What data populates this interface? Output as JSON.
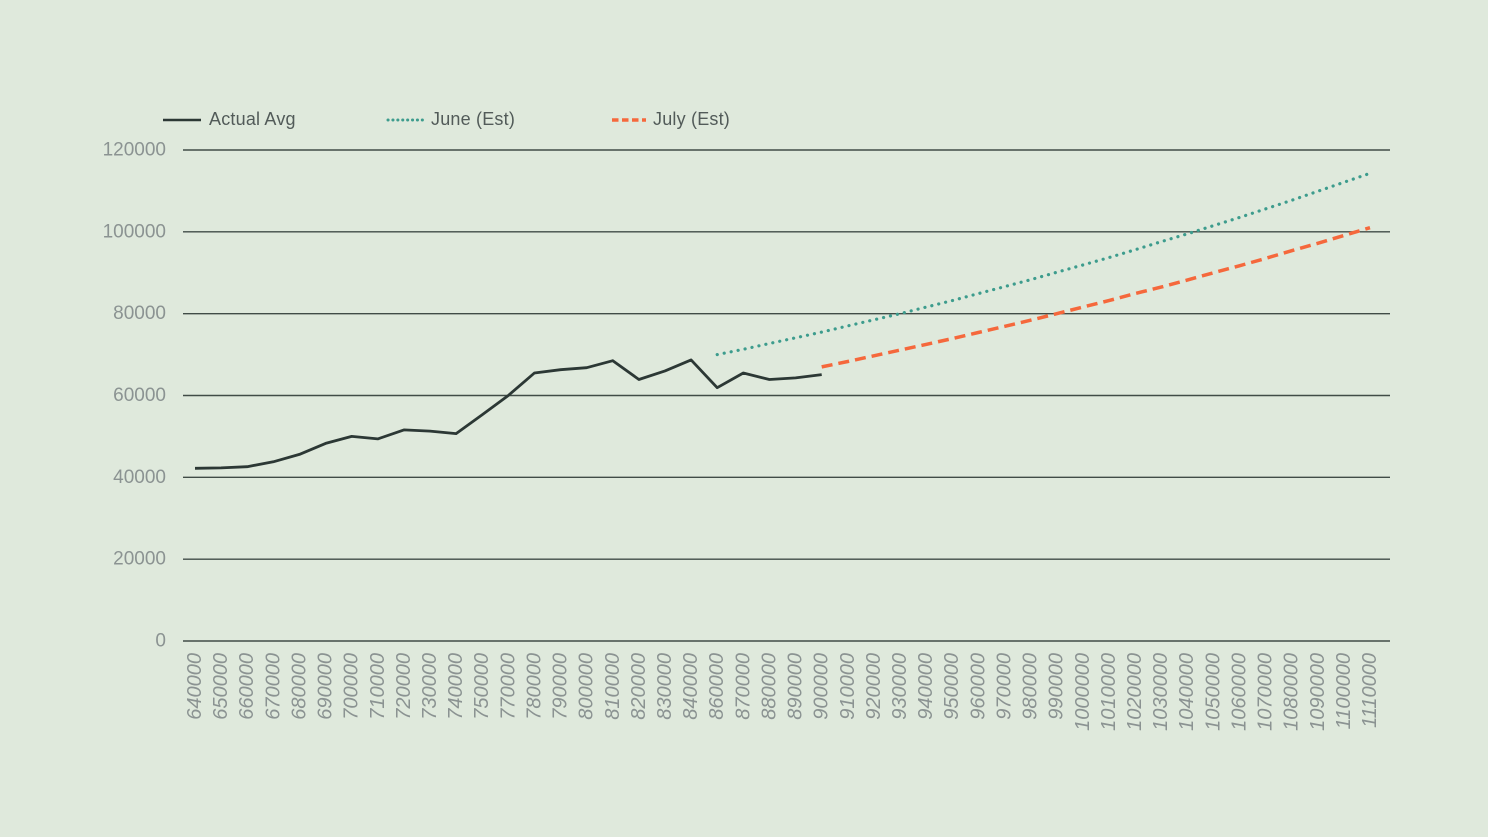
{
  "colors": {
    "background": "#dfe9dc",
    "gridline": "#414c47",
    "axis_label": "#8b9392",
    "legend_text": "#525b59"
  },
  "chart_data": {
    "type": "line",
    "title": "",
    "xlabel": "",
    "ylabel": "",
    "ylim": [
      0,
      120000
    ],
    "yticks": [
      0,
      20000,
      40000,
      60000,
      80000,
      100000,
      120000
    ],
    "grid": "horizontal",
    "legend_position": "top-left",
    "x_label_rotation": -90,
    "categories": [
      "640000",
      "650000",
      "660000",
      "670000",
      "680000",
      "690000",
      "700000",
      "710000",
      "720000",
      "730000",
      "740000",
      "750000",
      "770000",
      "780000",
      "790000",
      "800000",
      "810000",
      "820000",
      "830000",
      "840000",
      "860000",
      "870000",
      "880000",
      "890000",
      "900000",
      "910000",
      "920000",
      "930000",
      "940000",
      "950000",
      "960000",
      "970000",
      "980000",
      "990000",
      "1000000",
      "1010000",
      "1020000",
      "1030000",
      "1040000",
      "1050000",
      "1060000",
      "1070000",
      "1080000",
      "1090000",
      "1100000",
      "1110000"
    ],
    "series": [
      {
        "name": "Actual Avg",
        "style": "solid",
        "color": "#2c3835",
        "start_index": 0,
        "values": [
          42200,
          42300,
          42600,
          43800,
          45600,
          48300,
          50000,
          49400,
          51600,
          51300,
          50700,
          55300,
          60000,
          65500,
          66300,
          66800,
          68500,
          63900,
          66000,
          68700,
          61900,
          65500,
          63900,
          64300,
          65100
        ]
      },
      {
        "name": "June (Est)",
        "style": "dotted",
        "color": "#3d9c8d",
        "start_index": 20,
        "values": [
          70000,
          71300,
          72700,
          74100,
          75500,
          77000,
          78500,
          80000,
          81600,
          83200,
          84900,
          86600,
          88300,
          90100,
          91900,
          93700,
          95600,
          97600,
          99500,
          101500,
          103500,
          105600,
          107700,
          109900,
          112100,
          114300
        ]
      },
      {
        "name": "July (Est)",
        "style": "dashed",
        "color": "#f5683c",
        "start_index": 24,
        "values": [
          67000,
          68300,
          69700,
          71100,
          72500,
          73900,
          75400,
          76900,
          78400,
          80000,
          81600,
          83200,
          84900,
          86500,
          88200,
          90000,
          91700,
          93500,
          95400,
          97200,
          99100,
          101000
        ]
      }
    ]
  }
}
